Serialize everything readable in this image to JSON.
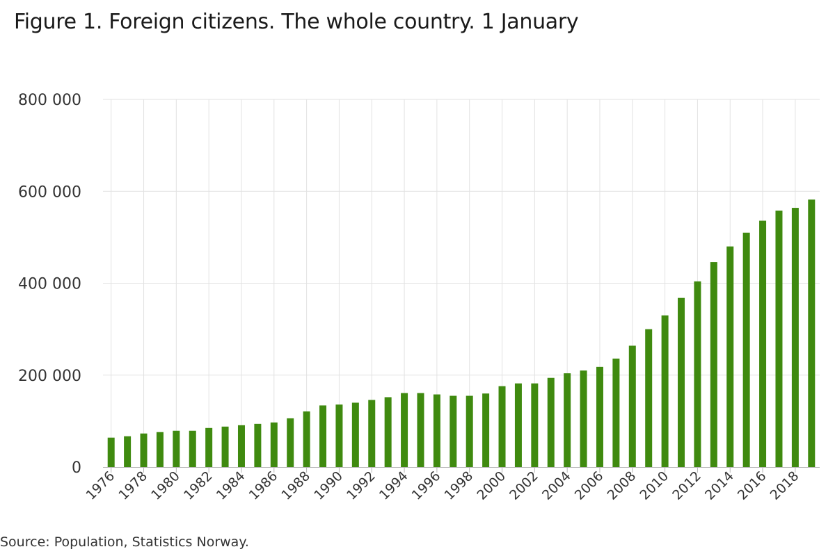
{
  "chart_data": {
    "type": "bar",
    "title": "Figure 1. Foreign citizens. The whole country. 1 January",
    "xlabel": "",
    "ylabel": "",
    "ylim": [
      0,
      800000
    ],
    "yticks": [
      0,
      200000,
      400000,
      600000,
      800000
    ],
    "ytick_labels": [
      "0",
      "200 000",
      "400 000",
      "600 000",
      "800 000"
    ],
    "xtick_labels": [
      "1976",
      "1978",
      "1980",
      "1982",
      "1984",
      "1986",
      "1988",
      "1990",
      "1992",
      "1994",
      "1996",
      "1998",
      "2000",
      "2002",
      "2004",
      "2006",
      "2008",
      "2010",
      "2012",
      "2014",
      "2016",
      "2018"
    ],
    "grid": true,
    "legend": "none",
    "bar_color": "#3f8a0f",
    "categories": [
      "1976",
      "1977",
      "1978",
      "1979",
      "1980",
      "1981",
      "1982",
      "1983",
      "1984",
      "1985",
      "1986",
      "1987",
      "1988",
      "1989",
      "1990",
      "1991",
      "1992",
      "1993",
      "1994",
      "1995",
      "1996",
      "1997",
      "1998",
      "1999",
      "2000",
      "2001",
      "2002",
      "2003",
      "2004",
      "2005",
      "2006",
      "2007",
      "2008",
      "2009",
      "2010",
      "2011",
      "2012",
      "2013",
      "2014",
      "2015",
      "2016",
      "2017",
      "2018",
      "2019"
    ],
    "values": [
      64000,
      67000,
      73000,
      76000,
      79000,
      79000,
      85000,
      88000,
      91000,
      94000,
      97000,
      106000,
      121000,
      134000,
      136000,
      140000,
      146000,
      152000,
      161000,
      161000,
      158000,
      155000,
      155000,
      160000,
      176000,
      182000,
      182000,
      194000,
      204000,
      210000,
      218000,
      236000,
      264000,
      300000,
      330000,
      368000,
      404000,
      446000,
      480000,
      510000,
      536000,
      558000,
      564000,
      582000
    ]
  },
  "source": "Source: Population, Statistics Norway."
}
